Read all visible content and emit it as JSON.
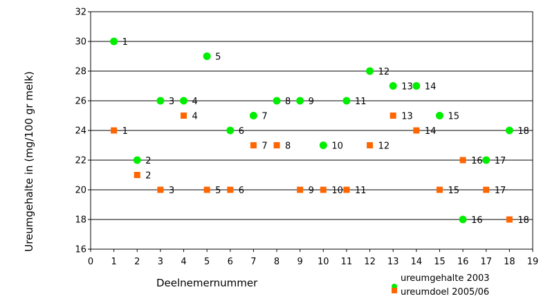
{
  "chart_data": {
    "type": "scatter",
    "xlabel": "Deelnemernummer",
    "ylabel": "Ureumgehalte in (mg/100 gr melk)",
    "xlim": [
      0,
      19
    ],
    "ylim": [
      16,
      32
    ],
    "x_ticks": [
      "0",
      "1",
      "2",
      "3",
      "4",
      "5",
      "6",
      "7",
      "8",
      "9",
      "10",
      "11",
      "12",
      "13",
      "14",
      "15",
      "16",
      "17",
      "18",
      "19"
    ],
    "y_ticks": [
      "16",
      "18",
      "20",
      "22",
      "24",
      "26",
      "28",
      "30",
      "32"
    ],
    "grid": "horizontal",
    "legend_position": "bottom-right",
    "series": [
      {
        "name": "ureumgehalte 2003",
        "color": "#00ee00",
        "marker": "circle",
        "points": [
          {
            "x": 1,
            "y": 30,
            "label": "1"
          },
          {
            "x": 2,
            "y": 22,
            "label": "2"
          },
          {
            "x": 3,
            "y": 26,
            "label": "3"
          },
          {
            "x": 4,
            "y": 26,
            "label": "4"
          },
          {
            "x": 5,
            "y": 29,
            "label": "5"
          },
          {
            "x": 6,
            "y": 24,
            "label": "6"
          },
          {
            "x": 7,
            "y": 25,
            "label": "7"
          },
          {
            "x": 8,
            "y": 26,
            "label": "8"
          },
          {
            "x": 9,
            "y": 26,
            "label": "9"
          },
          {
            "x": 10,
            "y": 23,
            "label": "10"
          },
          {
            "x": 11,
            "y": 26,
            "label": "11"
          },
          {
            "x": 12,
            "y": 28,
            "label": "12"
          },
          {
            "x": 13,
            "y": 27,
            "label": "13"
          },
          {
            "x": 14,
            "y": 27,
            "label": "14"
          },
          {
            "x": 15,
            "y": 25,
            "label": "15"
          },
          {
            "x": 16,
            "y": 18,
            "label": "16"
          },
          {
            "x": 17,
            "y": 22,
            "label": "17"
          },
          {
            "x": 18,
            "y": 24,
            "label": "18"
          }
        ]
      },
      {
        "name": "ureumdoel 2005/06",
        "color": "#ff6600",
        "marker": "square",
        "points": [
          {
            "x": 1,
            "y": 24,
            "label": "1"
          },
          {
            "x": 2,
            "y": 21,
            "label": "2"
          },
          {
            "x": 3,
            "y": 20,
            "label": "3"
          },
          {
            "x": 4,
            "y": 25,
            "label": "4"
          },
          {
            "x": 5,
            "y": 20,
            "label": "5"
          },
          {
            "x": 6,
            "y": 20,
            "label": "6"
          },
          {
            "x": 7,
            "y": 23,
            "label": "7"
          },
          {
            "x": 8,
            "y": 23,
            "label": "8"
          },
          {
            "x": 9,
            "y": 20,
            "label": "9"
          },
          {
            "x": 10,
            "y": 20,
            "label": "10"
          },
          {
            "x": 11,
            "y": 20,
            "label": "11"
          },
          {
            "x": 12,
            "y": 23,
            "label": "12"
          },
          {
            "x": 13,
            "y": 25,
            "label": "13"
          },
          {
            "x": 14,
            "y": 24,
            "label": "14"
          },
          {
            "x": 15,
            "y": 20,
            "label": "15"
          },
          {
            "x": 16,
            "y": 22,
            "label": "16"
          },
          {
            "x": 17,
            "y": 20,
            "label": "17"
          },
          {
            "x": 18,
            "y": 18,
            "label": "18"
          }
        ]
      }
    ]
  }
}
